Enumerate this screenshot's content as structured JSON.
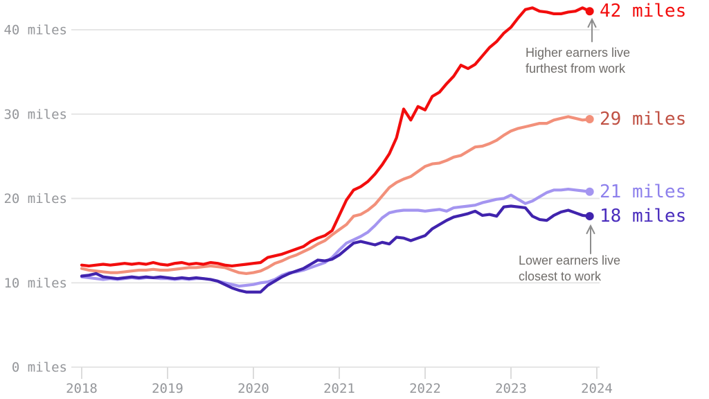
{
  "chart_data": {
    "type": "line",
    "title": "",
    "xlabel": "",
    "ylabel": "miles",
    "x_unit": "month",
    "x_start": "2018-01",
    "x_end": "2023-12",
    "x_tick_labels": [
      "2018",
      "2019",
      "2020",
      "2021",
      "2022",
      "2023",
      "2024"
    ],
    "y_ticks": [
      0,
      10,
      20,
      30,
      40
    ],
    "y_tick_labels": [
      "0 miles",
      "10 miles",
      "20 miles",
      "30 miles",
      "40 miles"
    ],
    "ylim": [
      0,
      43.5
    ],
    "grid": "horizontal",
    "legend_position": "none",
    "series": [
      {
        "id": "higher-earners",
        "color": "#f20d0d",
        "label_color": "#f20d0d",
        "end_label": "42 miles",
        "end_value": 42,
        "values": [
          12.1,
          12.0,
          12.1,
          12.2,
          12.1,
          12.2,
          12.3,
          12.2,
          12.3,
          12.2,
          12.4,
          12.2,
          12.1,
          12.3,
          12.4,
          12.2,
          12.3,
          12.2,
          12.4,
          12.3,
          12.1,
          12.0,
          12.1,
          12.2,
          12.3,
          12.4,
          13.0,
          13.2,
          13.4,
          13.7,
          14.0,
          14.3,
          14.9,
          15.3,
          15.6,
          16.2,
          18.0,
          19.8,
          21.0,
          21.4,
          22.0,
          22.9,
          24.0,
          25.3,
          27.2,
          30.6,
          29.3,
          30.9,
          30.5,
          32.1,
          32.6,
          33.6,
          34.5,
          35.8,
          35.4,
          35.9,
          36.9,
          37.9,
          38.6,
          39.6,
          40.3,
          41.4,
          42.4,
          42.6,
          42.2,
          42.1,
          41.9,
          41.9,
          42.1,
          42.2,
          42.6,
          42.2
        ]
      },
      {
        "id": "upper-middle-earners",
        "color": "#f2907a",
        "label_color": "#c05144",
        "end_label": "29 miles",
        "end_value": 29,
        "values": [
          11.7,
          11.5,
          11.4,
          11.3,
          11.2,
          11.2,
          11.3,
          11.4,
          11.5,
          11.5,
          11.6,
          11.5,
          11.5,
          11.6,
          11.7,
          11.8,
          11.8,
          11.9,
          12.0,
          11.9,
          11.8,
          11.5,
          11.2,
          11.1,
          11.2,
          11.4,
          11.8,
          12.3,
          12.6,
          13.0,
          13.3,
          13.7,
          14.1,
          14.6,
          15.0,
          15.7,
          16.3,
          16.9,
          17.9,
          18.1,
          18.6,
          19.3,
          20.3,
          21.3,
          21.9,
          22.3,
          22.6,
          23.2,
          23.8,
          24.1,
          24.2,
          24.5,
          24.9,
          25.1,
          25.6,
          26.1,
          26.2,
          26.5,
          26.9,
          27.5,
          28.0,
          28.3,
          28.5,
          28.7,
          28.9,
          28.9,
          29.3,
          29.5,
          29.7,
          29.5,
          29.3,
          29.4
        ]
      },
      {
        "id": "lower-middle-earners",
        "color": "#a495f0",
        "label_color": "#8d80ec",
        "end_label": "21 miles",
        "end_value": 21,
        "values": [
          10.7,
          10.6,
          10.5,
          10.4,
          10.5,
          10.4,
          10.5,
          10.6,
          10.5,
          10.6,
          10.6,
          10.5,
          10.5,
          10.4,
          10.5,
          10.4,
          10.5,
          10.5,
          10.4,
          10.2,
          10.0,
          9.8,
          9.6,
          9.7,
          9.8,
          10.0,
          10.1,
          10.4,
          10.9,
          11.2,
          11.3,
          11.5,
          11.8,
          12.1,
          12.4,
          13.0,
          13.9,
          14.7,
          15.1,
          15.5,
          16.0,
          16.8,
          17.7,
          18.3,
          18.5,
          18.6,
          18.6,
          18.6,
          18.5,
          18.6,
          18.7,
          18.5,
          18.9,
          19.0,
          19.1,
          19.2,
          19.5,
          19.7,
          19.9,
          20.0,
          20.4,
          19.9,
          19.4,
          19.7,
          20.2,
          20.7,
          21.0,
          21.0,
          21.1,
          21.0,
          20.9,
          20.8
        ]
      },
      {
        "id": "lower-earners",
        "color": "#4023ad",
        "label_color": "#4a2dbd",
        "end_label": "18 miles",
        "end_value": 18,
        "values": [
          10.8,
          10.9,
          11.1,
          10.7,
          10.6,
          10.5,
          10.6,
          10.7,
          10.6,
          10.7,
          10.6,
          10.7,
          10.6,
          10.5,
          10.6,
          10.5,
          10.6,
          10.5,
          10.4,
          10.2,
          9.8,
          9.4,
          9.1,
          8.9,
          8.9,
          8.9,
          9.7,
          10.2,
          10.7,
          11.1,
          11.4,
          11.7,
          12.2,
          12.7,
          12.6,
          12.8,
          13.3,
          14.0,
          14.7,
          14.9,
          14.7,
          14.5,
          14.8,
          14.6,
          15.4,
          15.3,
          15.0,
          15.3,
          15.6,
          16.4,
          16.9,
          17.4,
          17.8,
          18.0,
          18.2,
          18.5,
          18.0,
          18.1,
          17.9,
          19.0,
          19.1,
          19.0,
          18.9,
          17.9,
          17.5,
          17.4,
          18.0,
          18.4,
          18.6,
          18.3,
          18.0,
          17.9
        ]
      }
    ],
    "annotations": [
      {
        "id": "higher",
        "lines": [
          "Higher earners live",
          "furthest from work"
        ]
      },
      {
        "id": "lower",
        "lines": [
          "Lower earners live",
          "closest to work"
        ]
      }
    ]
  },
  "style": {
    "gridline_color": "#e6e6e6",
    "tick_color": "#dcdcdc",
    "axis_text_color": "#94969a",
    "annotation_text_color": "#706d6a",
    "arrow_color": "#8c8c8c"
  }
}
